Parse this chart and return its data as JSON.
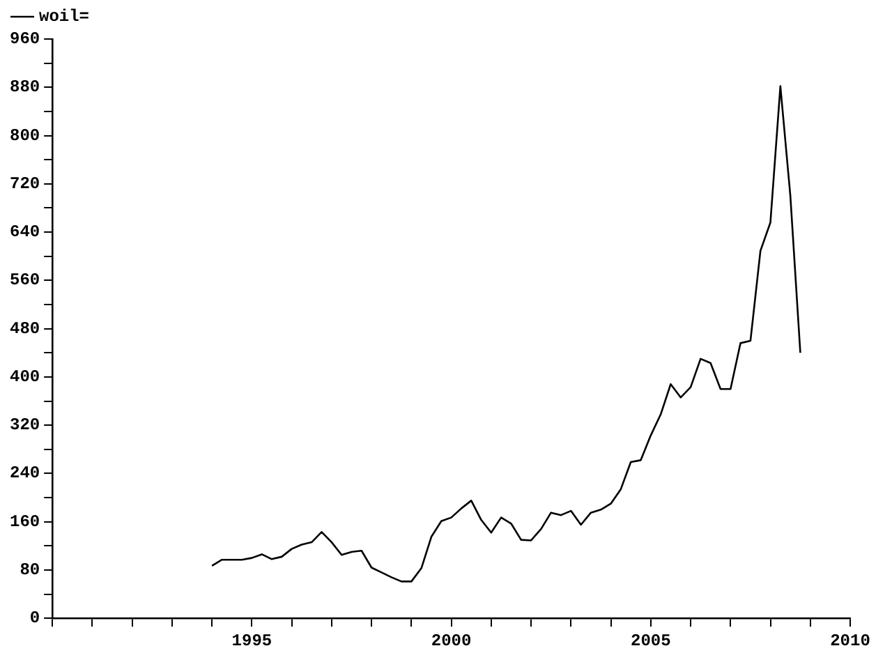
{
  "chart_data": {
    "type": "line",
    "legend": "top left",
    "grid": false,
    "marker": "none",
    "line_style": "solid",
    "xlim": [
      1990,
      2010
    ],
    "xticks": [
      {
        "value": 1990,
        "label": null
      },
      {
        "value": 1991,
        "label": null
      },
      {
        "value": 1992,
        "label": null
      },
      {
        "value": 1993,
        "label": null
      },
      {
        "value": 1994,
        "label": null
      },
      1995,
      {
        "value": 1996,
        "label": null
      },
      {
        "value": 1997,
        "label": null
      },
      {
        "value": 1998,
        "label": null
      },
      {
        "value": 1999,
        "label": null
      },
      2000,
      {
        "value": 2001,
        "label": null
      },
      {
        "value": 2002,
        "label": null
      },
      {
        "value": 2003,
        "label": null
      },
      {
        "value": 2004,
        "label": null
      },
      2005,
      {
        "value": 2006,
        "label": null
      },
      {
        "value": 2007,
        "label": null
      },
      {
        "value": 2008,
        "label": null
      },
      {
        "value": 2009,
        "label": null
      },
      2010
    ],
    "ylim": [
      0,
      960
    ],
    "yticks": [
      0,
      {
        "value": 40,
        "label": null
      },
      80,
      {
        "value": 120,
        "label": null
      },
      160,
      {
        "value": 200,
        "label": null
      },
      240,
      {
        "value": 280,
        "label": null
      },
      320,
      {
        "value": 360,
        "label": null
      },
      400,
      {
        "value": 440,
        "label": null
      },
      480,
      {
        "value": 520,
        "label": null
      },
      560,
      {
        "value": 600,
        "label": null
      },
      640,
      {
        "value": 680,
        "label": null
      },
      720,
      {
        "value": 760,
        "label": null
      },
      800,
      {
        "value": 840,
        "label": null
      },
      880,
      {
        "value": 920,
        "label": null
      },
      960
    ],
    "x": [
      1994,
      1994.25,
      1994.5,
      1994.75,
      1995,
      1995.25,
      1995.5,
      1995.75,
      1996,
      1996.25,
      1996.5,
      1996.75,
      1997,
      1997.25,
      1997.5,
      1997.75,
      1998,
      1998.25,
      1998.5,
      1998.75,
      1999,
      1999.25,
      1999.5,
      1999.75,
      2000,
      2000.25,
      2000.5,
      2000.75,
      2001,
      2001.25,
      2001.5,
      2001.75,
      2002,
      2002.25,
      2002.5,
      2002.75,
      2003,
      2003.25,
      2003.5,
      2003.75,
      2004,
      2004.25,
      2004.5,
      2004.75,
      2005,
      2005.25,
      2005.5,
      2005.75,
      2006,
      2006.25,
      2006.5,
      2006.75,
      2007,
      2007.25,
      2007.5,
      2007.75,
      2008,
      2008.25,
      2008.5,
      2008.75
    ],
    "series": [
      {
        "name": "woil=",
        "color": "#000000",
        "values": [
          87,
          97,
          97,
          97,
          100,
          106,
          98,
          102,
          115,
          122,
          126,
          143,
          126,
          105,
          110,
          112,
          84,
          76,
          68,
          61,
          61,
          83,
          135,
          161,
          167,
          182,
          195,
          163,
          142,
          167,
          157,
          130,
          129,
          148,
          175,
          171,
          178,
          155,
          175,
          180,
          190,
          214,
          259,
          262,
          303,
          338,
          388,
          366,
          383,
          430,
          423,
          380,
          380,
          456,
          460,
          609,
          656,
          882,
          700,
          440
        ]
      }
    ]
  }
}
